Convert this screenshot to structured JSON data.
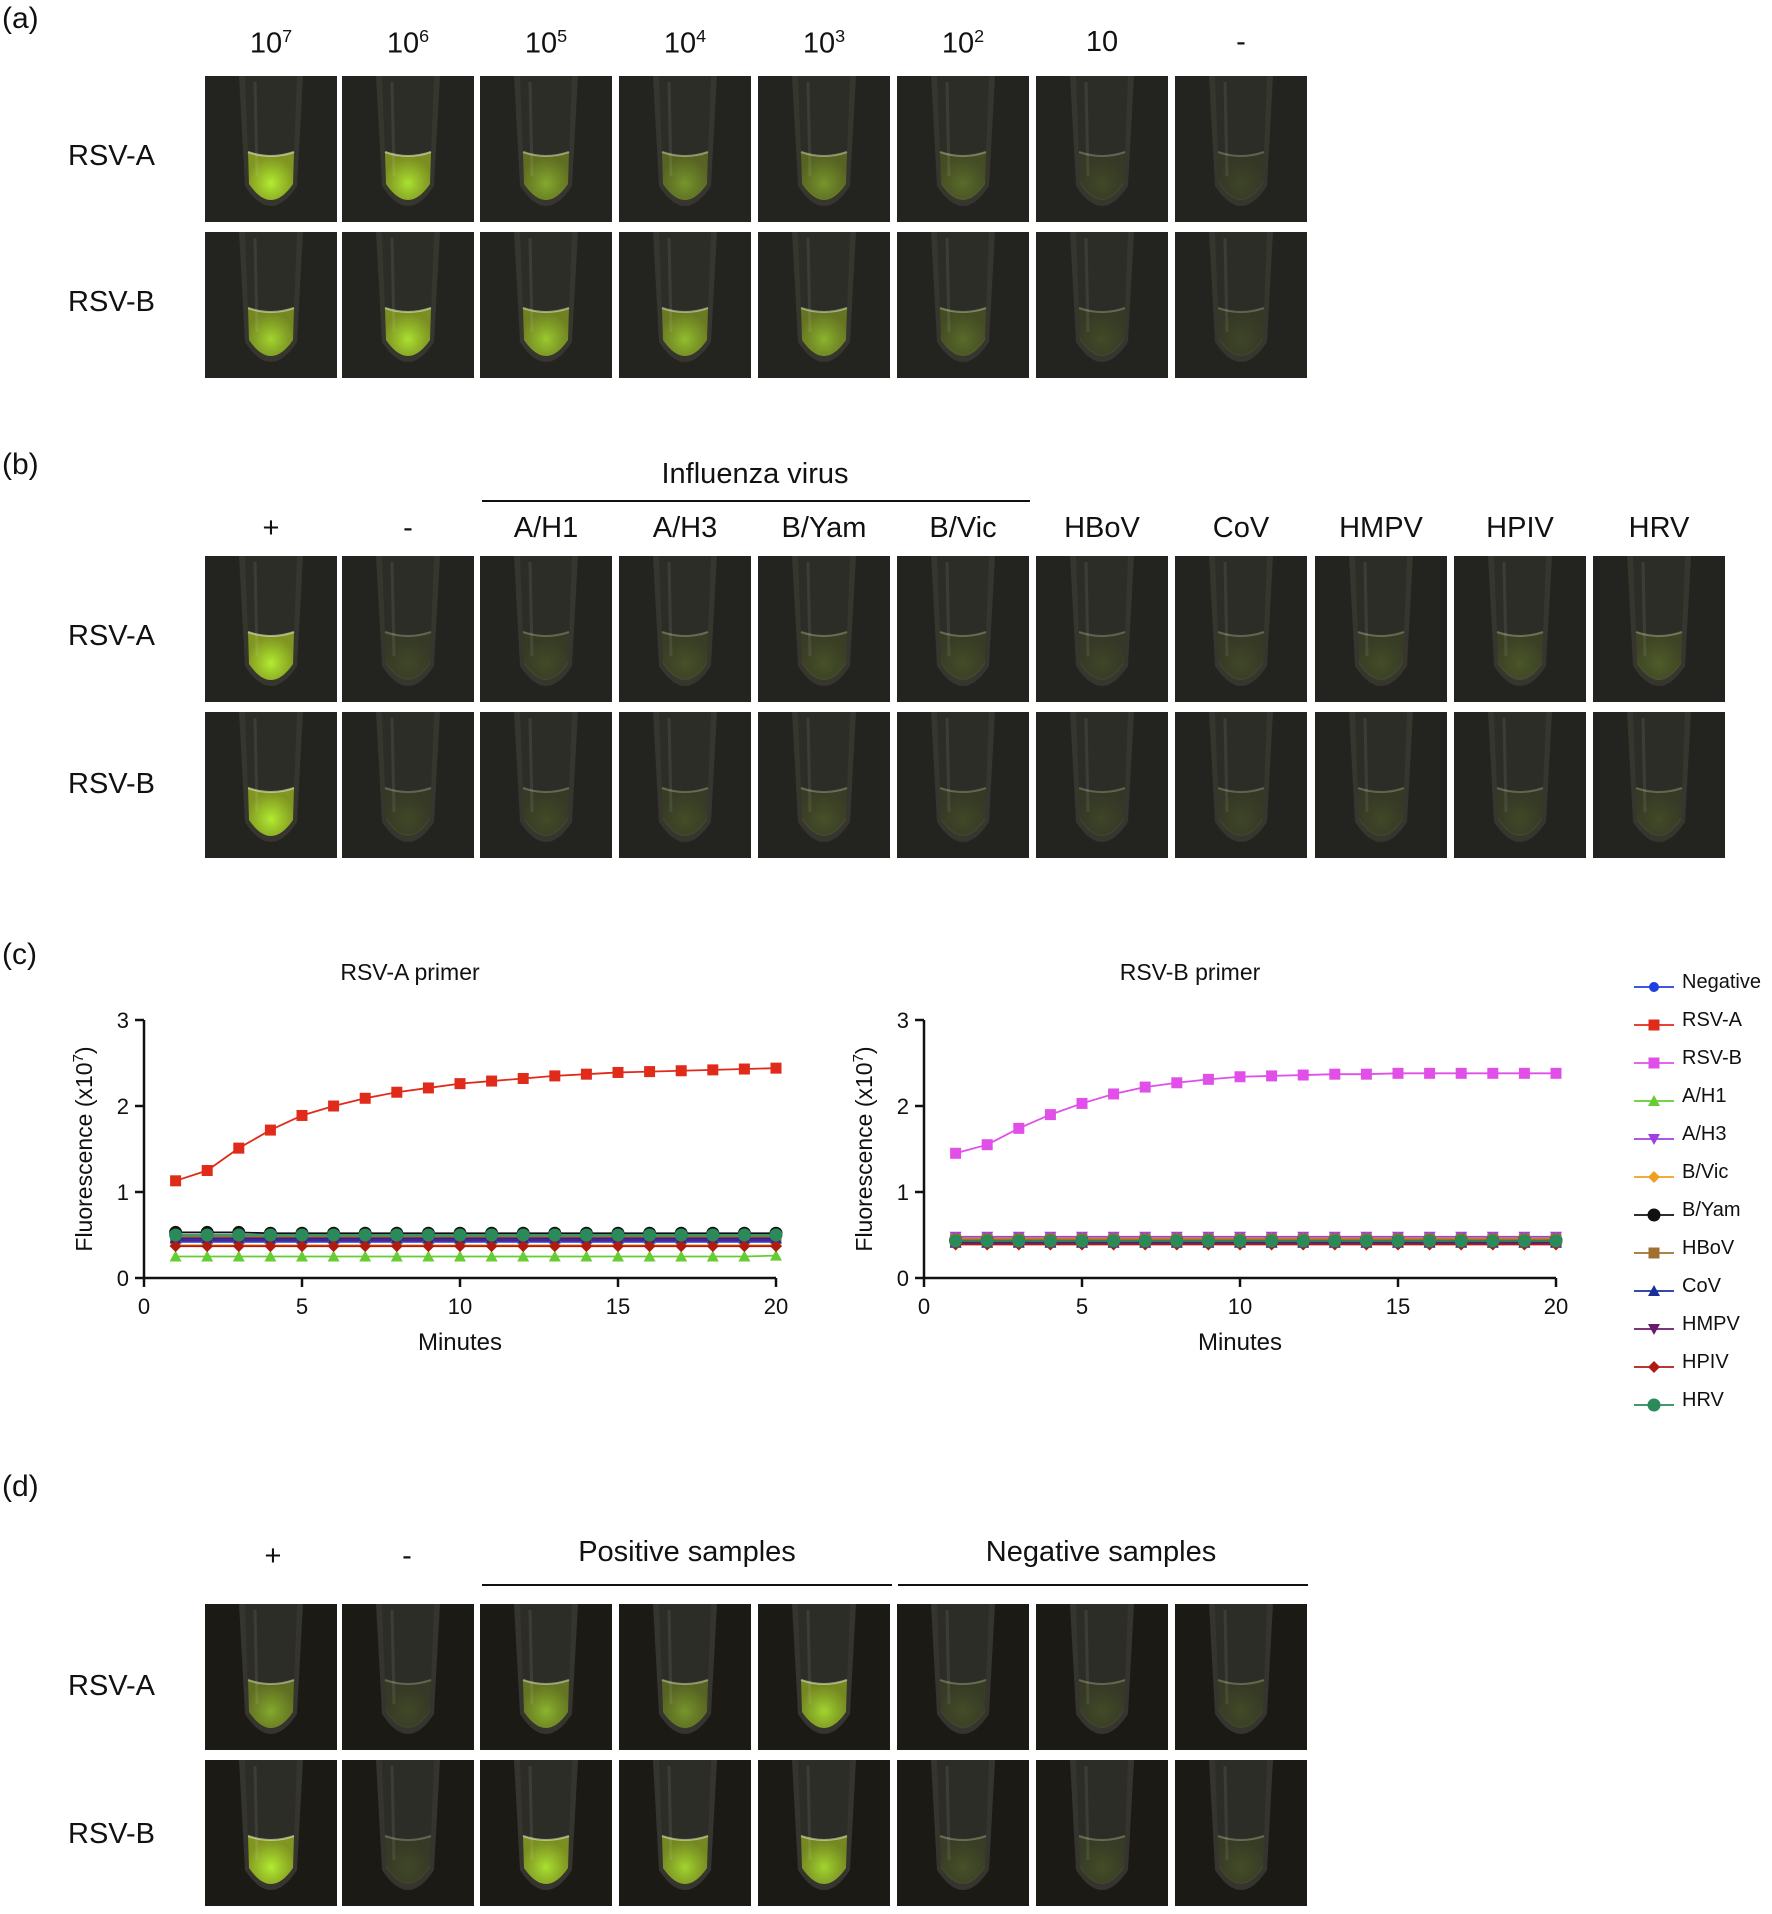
{
  "panel_a": {
    "label": "(a)",
    "columns": [
      "10",
      "10",
      "10",
      "10",
      "10",
      "10",
      "10",
      "-"
    ],
    "column_exponents": [
      "7",
      "6",
      "5",
      "4",
      "3",
      "2",
      "",
      ""
    ],
    "rows": [
      "RSV-A",
      "RSV-B"
    ],
    "intensity": [
      [
        1.0,
        0.95,
        0.7,
        0.6,
        0.6,
        0.35,
        0.08,
        0.05
      ],
      [
        0.9,
        0.95,
        0.85,
        0.8,
        0.75,
        0.35,
        0.1,
        0.06
      ]
    ]
  },
  "panel_b": {
    "label": "(b)",
    "group_label": "Influenza virus",
    "columns": [
      "+",
      "-",
      "A/H1",
      "A/H3",
      "B/Yam",
      "B/Vic",
      "HBoV",
      "CoV",
      "HMPV",
      "HPIV",
      "HRV"
    ],
    "rows": [
      "RSV-A",
      "RSV-B"
    ],
    "intensity": [
      [
        1.0,
        0.08,
        0.1,
        0.15,
        0.15,
        0.12,
        0.06,
        0.08,
        0.12,
        0.2,
        0.25
      ],
      [
        1.0,
        0.08,
        0.1,
        0.12,
        0.15,
        0.08,
        0.05,
        0.06,
        0.08,
        0.08,
        0.1
      ]
    ]
  },
  "panel_c": {
    "label": "(c)",
    "legend": [
      {
        "name": "Negative",
        "color": "#1f3fe0",
        "marker": "circle-small"
      },
      {
        "name": "RSV-A",
        "color": "#e02a1a",
        "marker": "square"
      },
      {
        "name": "RSV-B",
        "color": "#e050e8",
        "marker": "square"
      },
      {
        "name": "A/H1",
        "color": "#66cc33",
        "marker": "triangle-up"
      },
      {
        "name": "A/H3",
        "color": "#a040e0",
        "marker": "triangle-down"
      },
      {
        "name": "B/Vic",
        "color": "#f0a020",
        "marker": "diamond"
      },
      {
        "name": "B/Yam",
        "color": "#111111",
        "marker": "circle"
      },
      {
        "name": "HBoV",
        "color": "#a07030",
        "marker": "square"
      },
      {
        "name": "CoV",
        "color": "#1a2f9a",
        "marker": "triangle-up"
      },
      {
        "name": "HMPV",
        "color": "#6a1a6a",
        "marker": "triangle-down"
      },
      {
        "name": "HPIV",
        "color": "#b01a10",
        "marker": "diamond"
      },
      {
        "name": "HRV",
        "color": "#2a8a5a",
        "marker": "circle"
      }
    ]
  },
  "chart_data": [
    {
      "type": "line",
      "title": "RSV-A primer",
      "xlabel": "Minutes",
      "ylabel": "Fluorescence (x10",
      "ylabel_exp": "7",
      "ylabel_end": ")",
      "xlim": [
        0,
        20
      ],
      "ylim": [
        0,
        3
      ],
      "xticks": [
        "0",
        "5",
        "10",
        "15",
        "20"
      ],
      "yticks": [
        "0",
        "1",
        "2",
        "3"
      ],
      "x": [
        1,
        2,
        3,
        4,
        5,
        6,
        7,
        8,
        9,
        10,
        11,
        12,
        13,
        14,
        15,
        16,
        17,
        18,
        19,
        20
      ],
      "series": [
        {
          "name": "Negative",
          "values": [
            0.42,
            0.42,
            0.42,
            0.42,
            0.42,
            0.42,
            0.42,
            0.42,
            0.42,
            0.42,
            0.42,
            0.42,
            0.42,
            0.42,
            0.42,
            0.42,
            0.42,
            0.42,
            0.42,
            0.42
          ]
        },
        {
          "name": "RSV-A",
          "values": [
            1.13,
            1.25,
            1.51,
            1.72,
            1.89,
            2.0,
            2.09,
            2.16,
            2.21,
            2.26,
            2.29,
            2.32,
            2.35,
            2.37,
            2.39,
            2.4,
            2.41,
            2.42,
            2.43,
            2.44
          ]
        },
        {
          "name": "RSV-B",
          "values": [
            0.47,
            0.47,
            0.47,
            0.47,
            0.47,
            0.47,
            0.47,
            0.47,
            0.47,
            0.47,
            0.47,
            0.47,
            0.47,
            0.47,
            0.47,
            0.47,
            0.47,
            0.47,
            0.47,
            0.47
          ]
        },
        {
          "name": "A/H1",
          "values": [
            0.25,
            0.25,
            0.25,
            0.25,
            0.25,
            0.25,
            0.25,
            0.25,
            0.25,
            0.25,
            0.25,
            0.25,
            0.25,
            0.25,
            0.25,
            0.25,
            0.25,
            0.25,
            0.25,
            0.26
          ]
        },
        {
          "name": "A/H3",
          "values": [
            0.45,
            0.45,
            0.45,
            0.45,
            0.45,
            0.45,
            0.45,
            0.45,
            0.45,
            0.45,
            0.45,
            0.45,
            0.45,
            0.45,
            0.45,
            0.45,
            0.45,
            0.45,
            0.45,
            0.45
          ]
        },
        {
          "name": "B/Vic",
          "values": [
            0.38,
            0.38,
            0.38,
            0.38,
            0.38,
            0.38,
            0.38,
            0.38,
            0.38,
            0.38,
            0.38,
            0.38,
            0.38,
            0.38,
            0.38,
            0.38,
            0.38,
            0.38,
            0.38,
            0.38
          ]
        },
        {
          "name": "B/Yam",
          "values": [
            0.53,
            0.53,
            0.53,
            0.52,
            0.52,
            0.52,
            0.52,
            0.52,
            0.52,
            0.52,
            0.52,
            0.52,
            0.52,
            0.52,
            0.52,
            0.52,
            0.52,
            0.52,
            0.52,
            0.52
          ]
        },
        {
          "name": "HBoV",
          "values": [
            0.48,
            0.48,
            0.48,
            0.48,
            0.48,
            0.48,
            0.48,
            0.48,
            0.48,
            0.48,
            0.48,
            0.48,
            0.48,
            0.48,
            0.48,
            0.48,
            0.48,
            0.48,
            0.48,
            0.48
          ]
        },
        {
          "name": "CoV",
          "values": [
            0.46,
            0.46,
            0.46,
            0.46,
            0.46,
            0.46,
            0.46,
            0.46,
            0.46,
            0.46,
            0.46,
            0.46,
            0.46,
            0.46,
            0.46,
            0.46,
            0.46,
            0.46,
            0.46,
            0.46
          ]
        },
        {
          "name": "HMPV",
          "values": [
            0.44,
            0.44,
            0.44,
            0.44,
            0.44,
            0.44,
            0.44,
            0.44,
            0.44,
            0.44,
            0.44,
            0.44,
            0.44,
            0.44,
            0.44,
            0.44,
            0.44,
            0.44,
            0.44,
            0.44
          ]
        },
        {
          "name": "HPIV",
          "values": [
            0.37,
            0.37,
            0.37,
            0.37,
            0.37,
            0.37,
            0.37,
            0.37,
            0.37,
            0.37,
            0.37,
            0.37,
            0.37,
            0.37,
            0.37,
            0.37,
            0.37,
            0.37,
            0.37,
            0.37
          ]
        },
        {
          "name": "HRV",
          "values": [
            0.5,
            0.5,
            0.5,
            0.5,
            0.5,
            0.5,
            0.5,
            0.5,
            0.5,
            0.5,
            0.5,
            0.5,
            0.5,
            0.5,
            0.5,
            0.5,
            0.5,
            0.5,
            0.5,
            0.5
          ]
        }
      ]
    },
    {
      "type": "line",
      "title": "RSV-B primer",
      "xlabel": "Minutes",
      "ylabel": "Fluorescence (x10",
      "ylabel_exp": "7",
      "ylabel_end": ")",
      "xlim": [
        0,
        20
      ],
      "ylim": [
        0,
        3
      ],
      "xticks": [
        "0",
        "5",
        "10",
        "15",
        "20"
      ],
      "yticks": [
        "0",
        "1",
        "2",
        "3"
      ],
      "x": [
        1,
        2,
        3,
        4,
        5,
        6,
        7,
        8,
        9,
        10,
        11,
        12,
        13,
        14,
        15,
        16,
        17,
        18,
        19,
        20
      ],
      "series": [
        {
          "name": "Negative",
          "values": [
            0.42,
            0.42,
            0.42,
            0.42,
            0.42,
            0.42,
            0.42,
            0.42,
            0.42,
            0.42,
            0.42,
            0.42,
            0.42,
            0.42,
            0.42,
            0.42,
            0.42,
            0.42,
            0.42,
            0.42
          ]
        },
        {
          "name": "RSV-A",
          "values": [
            0.43,
            0.43,
            0.43,
            0.43,
            0.43,
            0.43,
            0.43,
            0.43,
            0.43,
            0.43,
            0.43,
            0.43,
            0.43,
            0.43,
            0.43,
            0.43,
            0.43,
            0.43,
            0.43,
            0.43
          ]
        },
        {
          "name": "RSV-B",
          "values": [
            1.45,
            1.55,
            1.74,
            1.9,
            2.03,
            2.14,
            2.22,
            2.27,
            2.31,
            2.34,
            2.35,
            2.36,
            2.37,
            2.37,
            2.38,
            2.38,
            2.38,
            2.38,
            2.38,
            2.38
          ]
        },
        {
          "name": "A/H1",
          "values": [
            0.47,
            0.47,
            0.47,
            0.47,
            0.47,
            0.47,
            0.47,
            0.47,
            0.47,
            0.47,
            0.47,
            0.47,
            0.47,
            0.47,
            0.47,
            0.47,
            0.47,
            0.47,
            0.47,
            0.47
          ]
        },
        {
          "name": "A/H3",
          "values": [
            0.48,
            0.48,
            0.48,
            0.48,
            0.48,
            0.48,
            0.48,
            0.48,
            0.48,
            0.48,
            0.48,
            0.48,
            0.48,
            0.48,
            0.48,
            0.48,
            0.48,
            0.48,
            0.48,
            0.48
          ]
        },
        {
          "name": "B/Vic",
          "values": [
            0.46,
            0.46,
            0.46,
            0.46,
            0.46,
            0.46,
            0.46,
            0.46,
            0.46,
            0.46,
            0.46,
            0.46,
            0.46,
            0.46,
            0.46,
            0.46,
            0.46,
            0.46,
            0.46,
            0.46
          ]
        },
        {
          "name": "B/Yam",
          "values": [
            0.44,
            0.44,
            0.44,
            0.44,
            0.44,
            0.44,
            0.44,
            0.44,
            0.44,
            0.44,
            0.44,
            0.44,
            0.44,
            0.44,
            0.44,
            0.44,
            0.44,
            0.44,
            0.44,
            0.44
          ]
        },
        {
          "name": "HBoV",
          "values": [
            0.45,
            0.45,
            0.45,
            0.45,
            0.45,
            0.45,
            0.45,
            0.45,
            0.45,
            0.45,
            0.45,
            0.45,
            0.45,
            0.45,
            0.45,
            0.45,
            0.45,
            0.45,
            0.45,
            0.45
          ]
        },
        {
          "name": "CoV",
          "values": [
            0.41,
            0.41,
            0.41,
            0.41,
            0.41,
            0.41,
            0.41,
            0.41,
            0.41,
            0.41,
            0.41,
            0.41,
            0.41,
            0.41,
            0.41,
            0.41,
            0.41,
            0.41,
            0.41,
            0.41
          ]
        },
        {
          "name": "HMPV",
          "values": [
            0.4,
            0.4,
            0.4,
            0.4,
            0.4,
            0.4,
            0.4,
            0.4,
            0.4,
            0.4,
            0.4,
            0.4,
            0.4,
            0.4,
            0.4,
            0.4,
            0.4,
            0.4,
            0.4,
            0.4
          ]
        },
        {
          "name": "HPIV",
          "values": [
            0.39,
            0.39,
            0.39,
            0.39,
            0.39,
            0.39,
            0.39,
            0.39,
            0.39,
            0.39,
            0.39,
            0.39,
            0.39,
            0.39,
            0.39,
            0.39,
            0.39,
            0.39,
            0.39,
            0.39
          ]
        },
        {
          "name": "HRV",
          "values": [
            0.43,
            0.43,
            0.43,
            0.43,
            0.43,
            0.43,
            0.43,
            0.43,
            0.43,
            0.43,
            0.43,
            0.43,
            0.43,
            0.43,
            0.43,
            0.43,
            0.43,
            0.43,
            0.43,
            0.43
          ]
        }
      ]
    }
  ],
  "panel_d": {
    "label": "(d)",
    "columns": [
      "+",
      "-"
    ],
    "group_labels": [
      "Positive samples",
      "Negative samples"
    ],
    "rows": [
      "RSV-A",
      "RSV-B"
    ],
    "intensity": [
      [
        0.7,
        0.08,
        0.75,
        0.6,
        0.9,
        0.12,
        0.1,
        0.1
      ],
      [
        1.0,
        0.08,
        0.95,
        0.9,
        0.9,
        0.15,
        0.12,
        0.12
      ]
    ]
  }
}
